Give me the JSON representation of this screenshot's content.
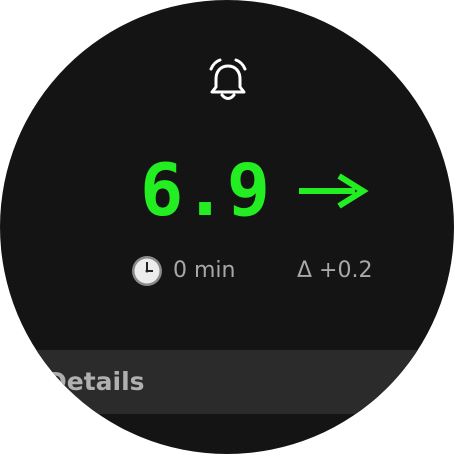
{
  "header": {
    "icon": "alarm-bell-icon"
  },
  "reading": {
    "value": "6.9",
    "value_color": "#22ee22",
    "trend_icon": "arrow-right-icon"
  },
  "stats": {
    "time_icon": "clock-icon",
    "time_ago": "0 min",
    "delta": "Δ +0.2"
  },
  "details": {
    "label": "Details"
  }
}
